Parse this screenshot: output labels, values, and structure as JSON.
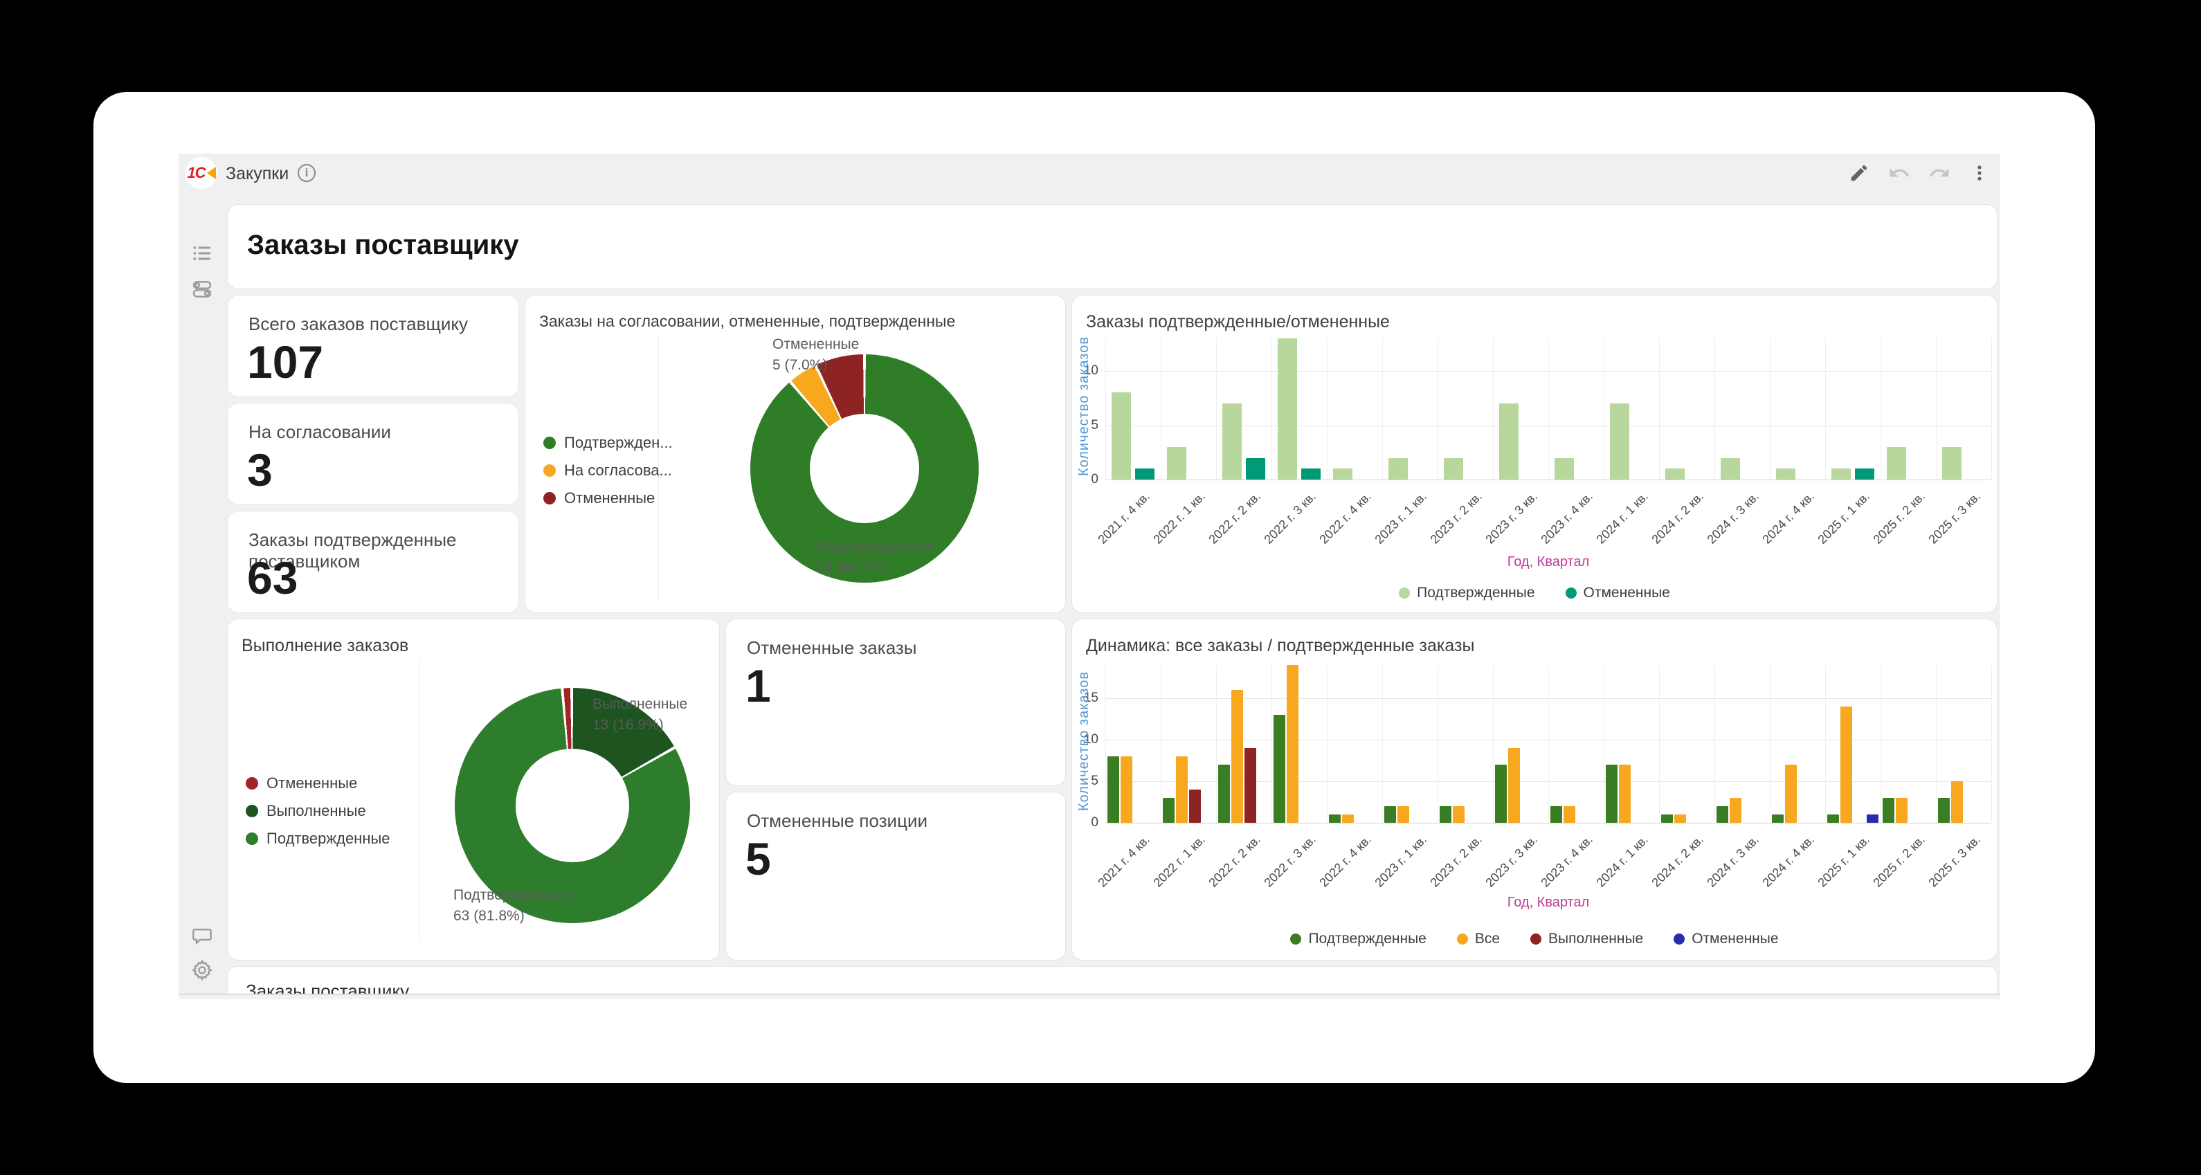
{
  "app": {
    "brand": "1С",
    "title": "Закупки"
  },
  "toolbar": {
    "icons": [
      "edit-pencil",
      "undo",
      "redo",
      "kebab-menu"
    ]
  },
  "sidebar": {
    "icons": [
      "list",
      "widgets",
      "comment",
      "settings-gear"
    ]
  },
  "page": {
    "title": "Заказы поставщику"
  },
  "kpis": [
    {
      "label": "Всего заказов поставщику",
      "value": "107"
    },
    {
      "label": "На согласовании",
      "value": "3"
    },
    {
      "label": "Заказы подтвержденные поставщиком",
      "value": "63"
    },
    {
      "label": "Отмененные заказы",
      "value": "1"
    },
    {
      "label": "Отмененные позиции",
      "value": "5"
    }
  ],
  "bottom_panel": {
    "title": "Заказы поставщику"
  },
  "colors": {
    "light_green": "#b7d79c",
    "teal": "#009a77",
    "green": "#3a7d22",
    "orange": "#f7a81f",
    "dark_red": "#8e2323",
    "blue": "#2a2aae",
    "axis_blue": "#4f97d4",
    "axis_magenta": "#bf3996",
    "logo_red": "#e31e24",
    "logo_orange": "#f7a500"
  },
  "chart_data": [
    {
      "type": "pie",
      "title": "Заказы на согласовании, отмененные, подтвержденные",
      "donut": true,
      "legend_position": "left",
      "slices": [
        {
          "label": "Подтвержденные",
          "value": 63,
          "pct": 88.7,
          "color": "#2f7d26"
        },
        {
          "label": "На согласовании",
          "value": 3,
          "pct": 4.2,
          "color": "#f8a81c"
        },
        {
          "label": "Отмененные",
          "value": 5,
          "pct": 7.0,
          "color": "#8e2323"
        }
      ],
      "legend_labels": [
        "Подтвержден...",
        "На согласова...",
        "Отмененные"
      ],
      "callouts": [
        {
          "line1": "Отмененные",
          "line2": "5 (7.0%)"
        },
        {
          "line1": "Подтвержденные",
          "line2": "63 (88.7%)"
        }
      ]
    },
    {
      "type": "bar",
      "title": "Заказы подтвержденные/отмененные",
      "ylabel": "Количество заказов",
      "xlabel": "Год, Квартал",
      "yticks": [
        0,
        5,
        10
      ],
      "ylim": [
        0,
        13
      ],
      "grid": true,
      "legend_position": "bottom",
      "categories": [
        "2021 г. 4 кв.",
        "2022 г. 1 кв.",
        "2022 г. 2 кв.",
        "2022 г. 3 кв.",
        "2022 г. 4 кв.",
        "2023 г. 1 кв.",
        "2023 г. 2 кв.",
        "2023 г. 3 кв.",
        "2023 г. 4 кв.",
        "2024 г. 1 кв.",
        "2024 г. 2 кв.",
        "2024 г. 3 кв.",
        "2024 г. 4 кв.",
        "2025 г. 1 кв.",
        "2025 г. 2 кв.",
        "2025 г. 3 кв."
      ],
      "series": [
        {
          "name": "Подтвержденные",
          "color": "#b7d79c",
          "values": [
            8,
            3,
            7,
            13,
            1,
            2,
            2,
            7,
            2,
            7,
            1,
            2,
            1,
            1,
            3,
            3
          ]
        },
        {
          "name": "Отмененные",
          "color": "#009a77",
          "values": [
            1,
            0,
            2,
            1,
            0,
            0,
            0,
            0,
            0,
            0,
            0,
            0,
            0,
            1,
            0,
            0
          ]
        }
      ]
    },
    {
      "type": "pie",
      "title": "Выполнение заказов",
      "donut": true,
      "legend_position": "left",
      "slices": [
        {
          "label": "Отмененные",
          "value": 1,
          "pct": 1.3,
          "color": "#a32424"
        },
        {
          "label": "Выполненные",
          "value": 13,
          "pct": 16.9,
          "color": "#1d5420"
        },
        {
          "label": "Подтвержденные",
          "value": 63,
          "pct": 81.8,
          "color": "#2d7d2c"
        }
      ],
      "legend_labels": [
        "Отмененные",
        "Выполненные",
        "Подтвержденные"
      ],
      "callouts": [
        {
          "line1": "Выполненные",
          "line2": "13 (16.9%)"
        },
        {
          "line1": "Подтвержденные",
          "line2": "63 (81.8%)"
        }
      ]
    },
    {
      "type": "bar",
      "title": "Динамика: все заказы / подтвержденные заказы",
      "ylabel": "Количество заказов",
      "xlabel": "Год, Квартал",
      "yticks": [
        0,
        5,
        10,
        15
      ],
      "ylim": [
        0,
        19
      ],
      "grid": true,
      "legend_position": "bottom",
      "categories": [
        "2021 г. 4 кв.",
        "2022 г. 1 кв.",
        "2022 г. 2 кв.",
        "2022 г. 3 кв.",
        "2022 г. 4 кв.",
        "2023 г. 1 кв.",
        "2023 г. 2 кв.",
        "2023 г. 3 кв.",
        "2023 г. 4 кв.",
        "2024 г. 1 кв.",
        "2024 г. 2 кв.",
        "2024 г. 3 кв.",
        "2024 г. 4 кв.",
        "2025 г. 1 кв.",
        "2025 г. 2 кв.",
        "2025 г. 3 кв."
      ],
      "series": [
        {
          "name": "Подтвержденные",
          "color": "#3a7d22",
          "values": [
            8,
            3,
            7,
            13,
            1,
            2,
            2,
            7,
            2,
            7,
            1,
            2,
            1,
            1,
            3,
            3
          ]
        },
        {
          "name": "Все",
          "color": "#f7a81f",
          "values": [
            8,
            8,
            16,
            19,
            1,
            2,
            2,
            9,
            2,
            7,
            1,
            3,
            7,
            14,
            3,
            5
          ]
        },
        {
          "name": "Выполненные",
          "color": "#8e2323",
          "values": [
            0,
            4,
            9,
            0,
            0,
            0,
            0,
            0,
            0,
            0,
            0,
            0,
            0,
            0,
            0,
            0
          ]
        },
        {
          "name": "Отмененные",
          "color": "#2a2aae",
          "values": [
            0,
            0,
            0,
            0,
            0,
            0,
            0,
            0,
            0,
            0,
            0,
            0,
            0,
            1,
            0,
            0
          ]
        }
      ]
    }
  ]
}
